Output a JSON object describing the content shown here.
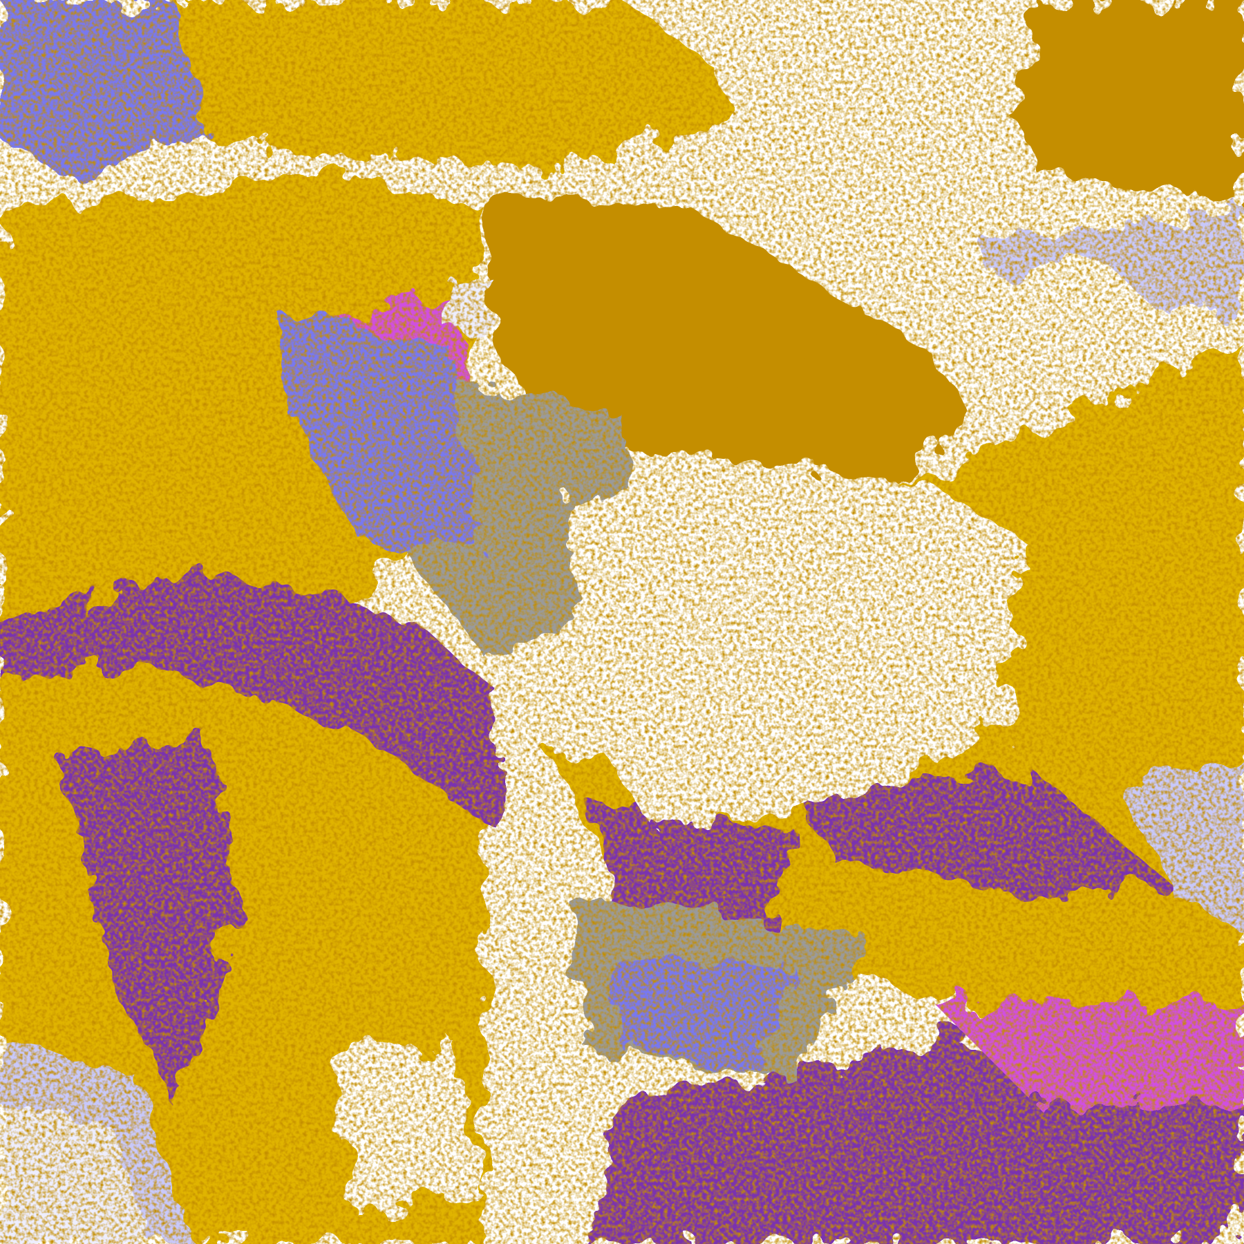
{
  "image": {
    "kind": "false-color satellite cloud imagery",
    "palette": {
      "clear": "#ffffff",
      "gold": "#e0b400",
      "dark_gold": "#c48e00",
      "gray": "#9a9a9a",
      "light_lavender": "#c8c8fa",
      "pale_lavender": "#eeeeff",
      "blue": "#7878f0",
      "magenta": "#d050e0",
      "purple": "#7a30b0"
    }
  }
}
